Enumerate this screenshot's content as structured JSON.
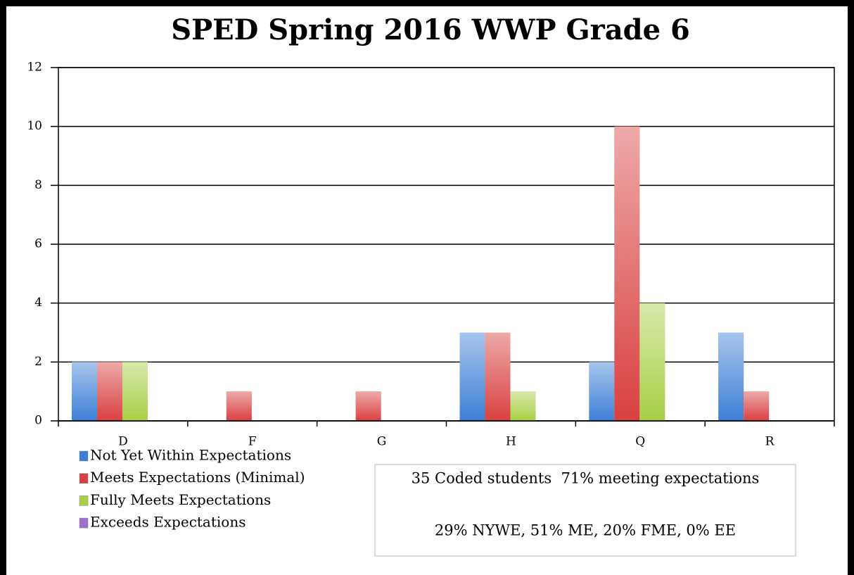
{
  "chart_data": {
    "type": "bar",
    "title": "SPED Spring 2016 WWP Grade 6",
    "categories": [
      "D",
      "F",
      "G",
      "H",
      "Q",
      "R"
    ],
    "series": [
      {
        "name": "Not Yet Within Expectations",
        "color": "#3d7fd6",
        "values": [
          2,
          0,
          0,
          3,
          2,
          3
        ]
      },
      {
        "name": "Meets Expectations (Minimal)",
        "color": "#d94040",
        "values": [
          2,
          1,
          1,
          3,
          10,
          1
        ]
      },
      {
        "name": "Fully Meets Expectations",
        "color": "#a8cf45",
        "values": [
          2,
          0,
          0,
          1,
          4,
          0
        ]
      },
      {
        "name": "Exceeds Expectations",
        "color": "#9a6fd0",
        "values": [
          0,
          0,
          0,
          0,
          0,
          0
        ]
      }
    ],
    "ylim": [
      0,
      12
    ],
    "yticks": [
      0,
      2,
      4,
      6,
      8,
      10,
      12
    ],
    "grid": true,
    "annotations": [
      "35 Coded students  71% meeting expectations",
      "29% NYWE, 51% ME, 20% FME, 0% EE"
    ]
  }
}
